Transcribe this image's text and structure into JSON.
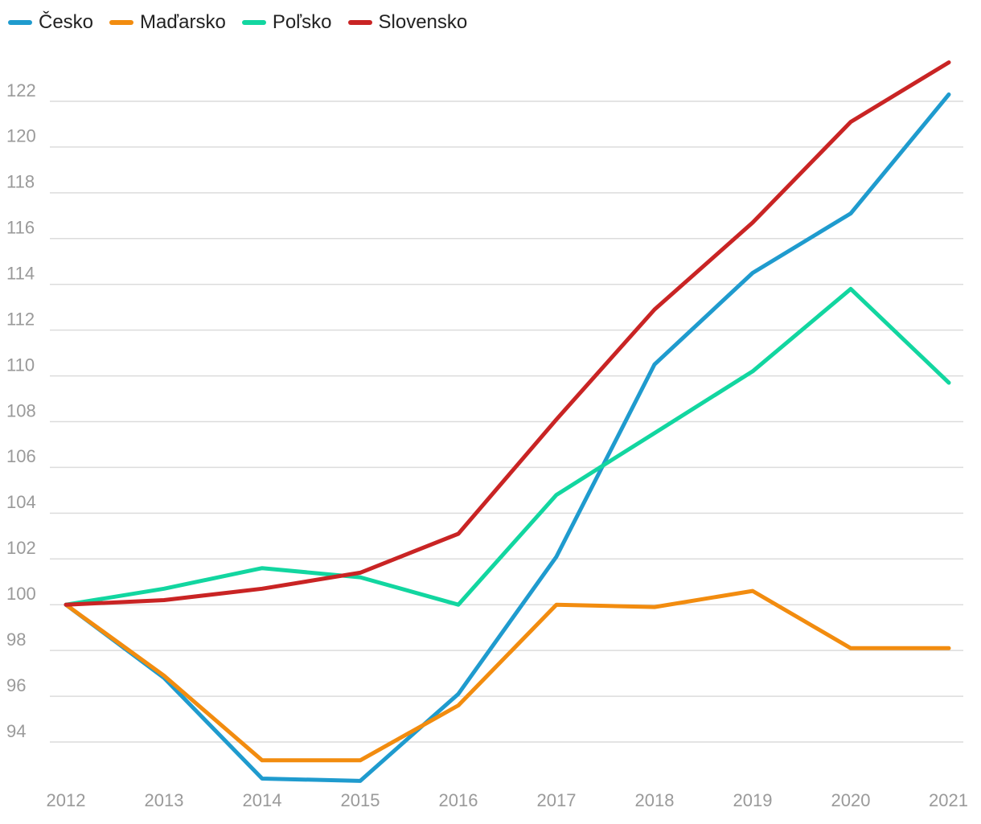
{
  "chart_data": {
    "type": "line",
    "title": "",
    "xlabel": "",
    "ylabel": "",
    "x": [
      "2012",
      "2013",
      "2014",
      "2015",
      "2016",
      "2017",
      "2018",
      "2019",
      "2020",
      "2021"
    ],
    "ylim": [
      92,
      124
    ],
    "yticks": [
      94,
      96,
      98,
      100,
      102,
      104,
      106,
      108,
      110,
      112,
      114,
      116,
      118,
      120,
      122
    ],
    "grid": true,
    "legend_position": "top-left",
    "series": [
      {
        "name": "Česko",
        "color": "#1f9bce",
        "values": [
          100.0,
          96.8,
          92.4,
          92.3,
          96.1,
          102.1,
          110.5,
          114.5,
          117.1,
          122.3
        ]
      },
      {
        "name": "Maďarsko",
        "color": "#f28c0f",
        "values": [
          100.0,
          96.9,
          93.2,
          93.2,
          95.6,
          100.0,
          99.9,
          100.6,
          98.1,
          98.1
        ]
      },
      {
        "name": "Poľsko",
        "color": "#12d6a0",
        "values": [
          100.0,
          100.7,
          101.6,
          101.2,
          100.0,
          104.8,
          107.5,
          110.2,
          113.8,
          109.7
        ]
      },
      {
        "name": "Slovensko",
        "color": "#c92424",
        "values": [
          100.0,
          100.2,
          100.7,
          101.4,
          103.1,
          108.1,
          112.9,
          116.7,
          121.1,
          123.7
        ]
      }
    ]
  }
}
